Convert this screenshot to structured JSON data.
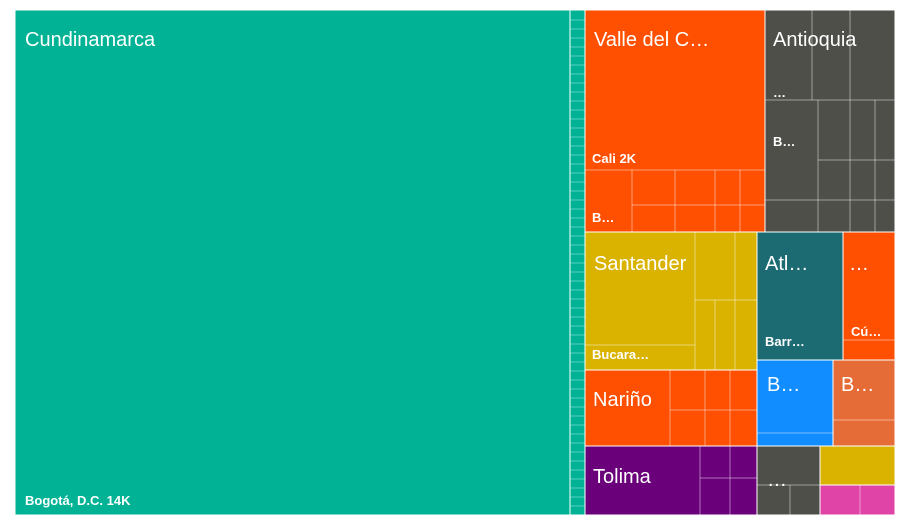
{
  "chart_data": {
    "type": "treemap",
    "tiles": [
      {
        "color": "#01B295",
        "labels": [
          "Cundinamarca",
          "Bogotá, D.C. 14K"
        ]
      },
      {
        "color": "#FF4F00",
        "labels": [
          "Valle del C…",
          "Cali 2K",
          "B…"
        ]
      },
      {
        "color": "#4F4F4A",
        "labels": [
          "Antioquia",
          "…",
          "B…"
        ]
      },
      {
        "color": "#D9B300",
        "labels": [
          "Santander",
          "Bucara…"
        ]
      },
      {
        "color": "#1C6B73",
        "labels": [
          "Atl…",
          "Barr…"
        ]
      },
      {
        "color": "#FF4F00",
        "labels": [
          "…",
          "Cú…"
        ]
      },
      {
        "color": "#FF4F00",
        "labels": [
          "Nariño"
        ]
      },
      {
        "color": "#6B007B",
        "labels": [
          "Tolima"
        ]
      },
      {
        "color": "#118DFF",
        "labels": [
          "B…"
        ]
      },
      {
        "color": "#E66C37",
        "labels": [
          "B…"
        ]
      },
      {
        "color": "#4F4F4A",
        "labels": [
          "…"
        ]
      },
      {
        "color": "#D9B300"
      },
      {
        "color": "#E044A7"
      }
    ]
  }
}
